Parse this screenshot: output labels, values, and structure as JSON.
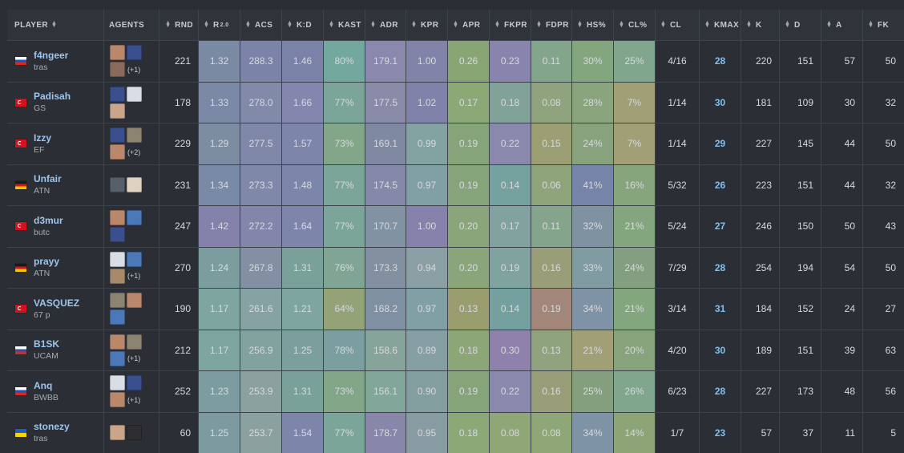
{
  "headers": {
    "player": "PLAYER",
    "agents": "AGENTS",
    "rnd": "RND",
    "rating": "R",
    "rating_sup": "2.0",
    "acs": "ACS",
    "kd": "K:D",
    "kast": "KAST",
    "adr": "ADR",
    "kpr": "KPR",
    "apr": "APR",
    "fkpr": "FKPR",
    "fdpr": "FDPR",
    "hs": "HS%",
    "clp": "CL%",
    "cl": "CL",
    "kmax": "KMAX",
    "k": "K",
    "d": "D",
    "a": "A",
    "fk": "FK"
  },
  "rows": [
    {
      "name": "f4ngeer",
      "team": "tras",
      "flag": "ru",
      "agents": [
        "#b9876a",
        "#3a4f8e",
        "#8a6a5a"
      ],
      "more": "(+1)",
      "rnd": "221",
      "rating": "1.32",
      "acs": "288.3",
      "kd": "1.46",
      "kast": "80%",
      "adr": "179.1",
      "kpr": "1.00",
      "apr": "0.26",
      "fkpr": "0.23",
      "fdpr": "0.11",
      "hs": "30%",
      "clp": "25%",
      "cl": "4/16",
      "kmax": "28",
      "k": "220",
      "d": "151",
      "a": "57",
      "fk": "50"
    },
    {
      "name": "Padisah",
      "team": "GS",
      "flag": "tr",
      "agents": [
        "#3a4f8e",
        "#d8dde6",
        "#c9a58a"
      ],
      "more": "",
      "rnd": "178",
      "rating": "1.33",
      "acs": "278.0",
      "kd": "1.66",
      "kast": "77%",
      "adr": "177.5",
      "kpr": "1.02",
      "apr": "0.17",
      "fkpr": "0.18",
      "fdpr": "0.08",
      "hs": "28%",
      "clp": "7%",
      "cl": "1/14",
      "kmax": "30",
      "k": "181",
      "d": "109",
      "a": "30",
      "fk": "32"
    },
    {
      "name": "Izzy",
      "team": "EF",
      "flag": "tr",
      "agents": [
        "#3a4f8e",
        "#8c8470",
        "#b9876a"
      ],
      "more": "(+2)",
      "rnd": "229",
      "rating": "1.29",
      "acs": "277.5",
      "kd": "1.57",
      "kast": "73%",
      "adr": "169.1",
      "kpr": "0.99",
      "apr": "0.19",
      "fkpr": "0.22",
      "fdpr": "0.15",
      "hs": "24%",
      "clp": "7%",
      "cl": "1/14",
      "kmax": "29",
      "k": "227",
      "d": "145",
      "a": "44",
      "fk": "50"
    },
    {
      "name": "Unfair",
      "team": "ATN",
      "flag": "de",
      "agents": [
        "#56606a",
        "#e0d2c2"
      ],
      "more": "",
      "rnd": "231",
      "rating": "1.34",
      "acs": "273.3",
      "kd": "1.48",
      "kast": "77%",
      "adr": "174.5",
      "kpr": "0.97",
      "apr": "0.19",
      "fkpr": "0.14",
      "fdpr": "0.06",
      "hs": "41%",
      "clp": "16%",
      "cl": "5/32",
      "kmax": "26",
      "k": "223",
      "d": "151",
      "a": "44",
      "fk": "32"
    },
    {
      "name": "d3mur",
      "team": "butc",
      "flag": "tr",
      "agents": [
        "#b9876a",
        "#4a78b8",
        "#3a4f8e"
      ],
      "more": "",
      "rnd": "247",
      "rating": "1.42",
      "acs": "272.2",
      "kd": "1.64",
      "kast": "77%",
      "adr": "170.7",
      "kpr": "1.00",
      "apr": "0.20",
      "fkpr": "0.17",
      "fdpr": "0.11",
      "hs": "32%",
      "clp": "21%",
      "cl": "5/24",
      "kmax": "27",
      "k": "246",
      "d": "150",
      "a": "50",
      "fk": "43"
    },
    {
      "name": "prayy",
      "team": "ATN",
      "flag": "de",
      "agents": [
        "#d8dde6",
        "#4a78b8",
        "#a88a6a"
      ],
      "more": "(+1)",
      "rnd": "270",
      "rating": "1.24",
      "acs": "267.8",
      "kd": "1.31",
      "kast": "76%",
      "adr": "173.3",
      "kpr": "0.94",
      "apr": "0.20",
      "fkpr": "0.19",
      "fdpr": "0.16",
      "hs": "33%",
      "clp": "24%",
      "cl": "7/29",
      "kmax": "28",
      "k": "254",
      "d": "194",
      "a": "54",
      "fk": "50"
    },
    {
      "name": "VASQUEZ",
      "team": "67 p",
      "flag": "tr",
      "agents": [
        "#8c8470",
        "#b9876a",
        "#4a78b8"
      ],
      "more": "",
      "rnd": "190",
      "rating": "1.17",
      "acs": "261.6",
      "kd": "1.21",
      "kast": "64%",
      "adr": "168.2",
      "kpr": "0.97",
      "apr": "0.13",
      "fkpr": "0.14",
      "fdpr": "0.19",
      "hs": "34%",
      "clp": "21%",
      "cl": "3/14",
      "kmax": "31",
      "k": "184",
      "d": "152",
      "a": "24",
      "fk": "27"
    },
    {
      "name": "B1SK",
      "team": "UCAM",
      "flag": "ru",
      "agents": [
        "#b9876a",
        "#8c8470",
        "#4a78b8"
      ],
      "more": "(+1)",
      "rnd": "212",
      "rating": "1.17",
      "acs": "256.9",
      "kd": "1.25",
      "kast": "78%",
      "adr": "158.6",
      "kpr": "0.89",
      "apr": "0.18",
      "fkpr": "0.30",
      "fdpr": "0.13",
      "hs": "21%",
      "clp": "20%",
      "cl": "4/20",
      "kmax": "30",
      "k": "189",
      "d": "151",
      "a": "39",
      "fk": "63"
    },
    {
      "name": "Anq",
      "team": "BWBB",
      "flag": "ru",
      "agents": [
        "#d8dde6",
        "#3a4f8e",
        "#b9876a"
      ],
      "more": "(+1)",
      "rnd": "252",
      "rating": "1.23",
      "acs": "253.9",
      "kd": "1.31",
      "kast": "73%",
      "adr": "156.1",
      "kpr": "0.90",
      "apr": "0.19",
      "fkpr": "0.22",
      "fdpr": "0.16",
      "hs": "25%",
      "clp": "26%",
      "cl": "6/23",
      "kmax": "28",
      "k": "227",
      "d": "173",
      "a": "48",
      "fk": "56"
    },
    {
      "name": "stonezy",
      "team": "tras",
      "flag": "ua",
      "agents": [
        "#c9a58a",
        "#2e2e30"
      ],
      "more": "",
      "rnd": "60",
      "rating": "1.25",
      "acs": "253.7",
      "kd": "1.54",
      "kast": "77%",
      "adr": "178.7",
      "kpr": "0.95",
      "apr": "0.18",
      "fkpr": "0.08",
      "fdpr": "0.08",
      "hs": "34%",
      "clp": "14%",
      "cl": "1/7",
      "kmax": "23",
      "k": "57",
      "d": "37",
      "a": "11",
      "fk": "5"
    }
  ],
  "cell_colors": [
    [
      "#7b8aa3",
      "#7b83a8",
      "#7a82a8",
      "#72a89e",
      "#8a88ad",
      "#8184a8",
      "#88a674",
      "#8884ad",
      "#82a58c",
      "#84a67e",
      "#80a78e"
    ],
    [
      "#7b88a6",
      "#818aa9",
      "#8586ae",
      "#7ba599",
      "#888aa8",
      "#8082aa",
      "#8da877",
      "#80a298",
      "#8ea37e",
      "#8aa47e",
      "#a09f76"
    ],
    [
      "#7c8da2",
      "#8088a9",
      "#7d86aa",
      "#84a688",
      "#7f8aa2",
      "#83a3a3",
      "#86a479",
      "#8a88ac",
      "#9c9f74",
      "#88a27e",
      "#a19f75"
    ],
    [
      "#788aa6",
      "#8088a9",
      "#7c86aa",
      "#7ba599",
      "#8688a9",
      "#80a0a6",
      "#86a479",
      "#75a19f",
      "#90a47c",
      "#7684a9",
      "#86a57d"
    ],
    [
      "#8481aa",
      "#8386aa",
      "#7d86aa",
      "#7ba599",
      "#8192a2",
      "#8682ac",
      "#8ba57a",
      "#82a2a0",
      "#84a58c",
      "#7f92a1",
      "#84a67e"
    ],
    [
      "#7c9d9d",
      "#8390a3",
      "#7aa199",
      "#80a594",
      "#8290a2",
      "#8aa0a4",
      "#8ba57a",
      "#80a3a0",
      "#9a9e78",
      "#819ba2",
      "#829f82"
    ],
    [
      "#7ea59f",
      "#86a2a2",
      "#7ea5a0",
      "#93a377",
      "#7f90a2",
      "#80a0a6",
      "#9a9e6f",
      "#74a19f",
      "#a3867a",
      "#7e93a6",
      "#84a67e"
    ],
    [
      "#7ea59f",
      "#82a2a0",
      "#7a9f9d",
      "#7b9fa0",
      "#86a49a",
      "#859fa4",
      "#8da677",
      "#8e82ad",
      "#8ea37e",
      "#a19f76",
      "#86a37c"
    ],
    [
      "#7d9c9f",
      "#8aa19f",
      "#7aa199",
      "#84a688",
      "#83a69b",
      "#829e9f",
      "#86a479",
      "#8a88ac",
      "#9a9e78",
      "#849f7e",
      "#80a78e"
    ],
    [
      "#7d9aa1",
      "#8aa19f",
      "#7d86aa",
      "#7ba599",
      "#8887a9",
      "#869ba2",
      "#8da877",
      "#8fa676",
      "#8fa676",
      "#7f93a6",
      "#8da576"
    ]
  ]
}
